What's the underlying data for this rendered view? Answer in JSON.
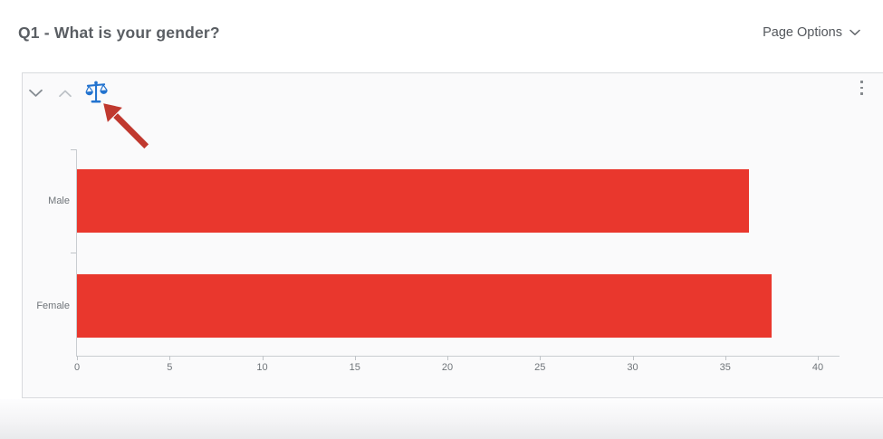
{
  "header": {
    "title": "Q1 - What is your gender?",
    "page_options_label": "Page Options"
  },
  "widget": {
    "toolbar_icons": [
      "chevron-down-icon",
      "chevron-up-icon",
      "scales-icon"
    ],
    "menu_icon": "kebab-menu-icon",
    "scales_icon_color": "#2273cf"
  },
  "annotation": {
    "type": "arrow",
    "points_at": "scales-icon",
    "color": "#c0392f"
  },
  "chart_data": {
    "type": "bar",
    "orientation": "horizontal",
    "title": "",
    "xlabel": "",
    "ylabel": "",
    "categories": [
      "Male",
      "Female"
    ],
    "values": [
      36.3,
      37.5
    ],
    "xticks": [
      0,
      5,
      10,
      15,
      20,
      25,
      30,
      35,
      40
    ],
    "xlim": [
      0,
      41.2
    ],
    "grid": false,
    "legend": false,
    "bar_color": "#e9372d"
  },
  "colors": {
    "card_background": "#fafafb",
    "card_border": "#d8dadd",
    "axis": "#c9cdd1",
    "text_muted": "#6f7479",
    "title_text": "#5a5e63"
  }
}
